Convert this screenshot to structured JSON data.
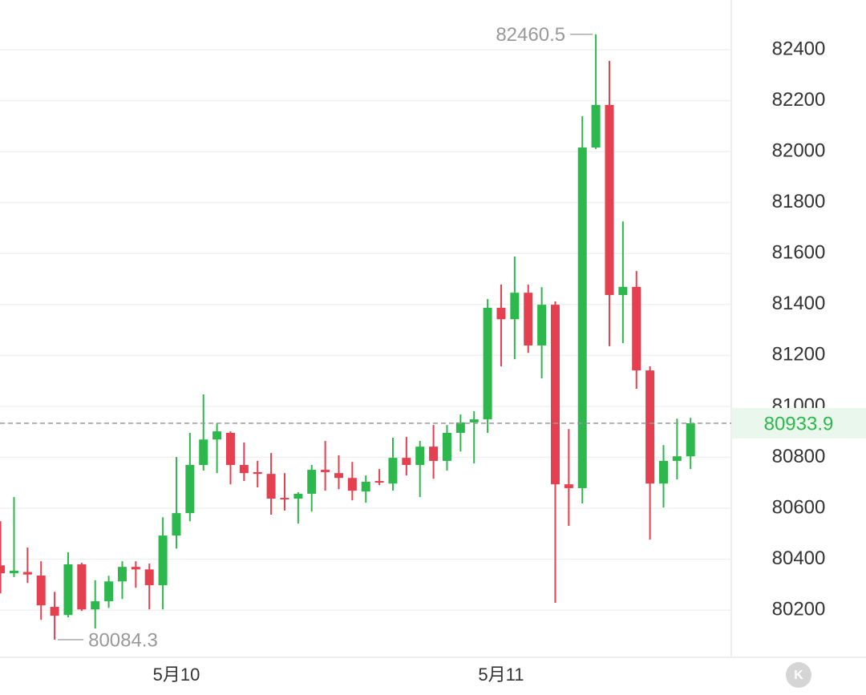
{
  "chart_data": {
    "type": "candlestick",
    "categories": [
      null,
      null,
      null,
      null,
      null,
      null,
      null,
      null,
      null,
      null,
      null,
      null,
      null,
      "5月10",
      null,
      null,
      null,
      null,
      null,
      null,
      null,
      null,
      null,
      null,
      null,
      null,
      null,
      null,
      null,
      null,
      null,
      null,
      null,
      null,
      null,
      null,
      null,
      "5月11",
      null,
      null,
      null,
      null,
      null,
      null,
      null,
      null,
      null,
      null,
      null,
      null,
      null,
      null
    ],
    "open": [
      80376,
      80345,
      80350,
      80336,
      80213,
      80181,
      80380,
      80203,
      80235,
      80313,
      80370,
      80360,
      80298,
      80493,
      80581,
      80770,
      80870,
      80896,
      80770,
      80742,
      80735,
      80641,
      80638,
      80657,
      80751,
      80738,
      80719,
      80666,
      80707,
      80697,
      80798,
      80770,
      80842,
      80786,
      80896,
      80937,
      80949,
      81387,
      81342,
      81446,
      81239,
      81399,
      80694,
      80679,
      82016,
      82183,
      81437,
      81469,
      81141,
      80697,
      80786,
      80804
    ],
    "high": [
      80549,
      80644,
      80446,
      80392,
      80272,
      80427,
      80386,
      80317,
      80335,
      80392,
      80392,
      80383,
      80565,
      80801,
      80896,
      81047,
      80933,
      80902,
      80858,
      80786,
      80817,
      80738,
      80663,
      80770,
      80864,
      80808,
      80782,
      80729,
      80754,
      80877,
      80880,
      80864,
      80927,
      80927,
      80968,
      80981,
      81421,
      81478,
      81588,
      81478,
      81468,
      81412,
      80911,
      82139,
      82460.5,
      82356,
      81726,
      81531,
      81157,
      80848,
      80952,
      80955
    ],
    "low": [
      80266,
      80330,
      80307,
      80162,
      80084.3,
      80172,
      80197,
      80128,
      80209,
      80244,
      80288,
      80203,
      80203,
      80442,
      80549,
      80748,
      80738,
      80694,
      80707,
      80682,
      80575,
      80591,
      80540,
      80587,
      80669,
      80675,
      80631,
      80622,
      80691,
      80669,
      80729,
      80644,
      80716,
      80748,
      80823,
      80776,
      80896,
      81157,
      81185,
      81210,
      81110,
      80229,
      80531,
      80619,
      82010,
      81236,
      81248,
      81069,
      80477,
      80603,
      80713,
      80754
    ],
    "close": [
      80345,
      80355,
      80340,
      80219,
      80178,
      80380,
      80203,
      80235,
      80313,
      80370,
      80360,
      80298,
      80493,
      80581,
      80770,
      80870,
      80902,
      80770,
      80738,
      80735,
      80638,
      80635,
      80657,
      80751,
      80742,
      80719,
      80669,
      80704,
      80701,
      80798,
      80770,
      80842,
      80786,
      80896,
      80937,
      80949,
      81387,
      81342,
      81446,
      81239,
      81399,
      80694,
      80679,
      82016,
      82183,
      81437,
      81469,
      81141,
      80697,
      80786,
      80804,
      80933.9
    ],
    "up_color": "#2db84d",
    "down_color": "#e5404f",
    "ylim": [
      80015,
      82595
    ],
    "yticks": [
      80200,
      80400,
      80600,
      80800,
      81000,
      81200,
      81400,
      81600,
      81800,
      82000,
      82200,
      82400
    ],
    "grid": true
  },
  "button_label": "K"
}
